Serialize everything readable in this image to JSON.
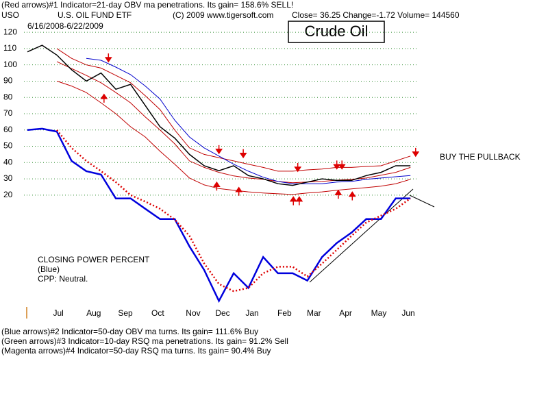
{
  "chart_data": {
    "type": "line",
    "title": "Crude Oil",
    "header": "(Red arrows)#1 Indicator=21-day OBV ma penetrations. Its gain= 158.6% SELL!",
    "symbol": "USO",
    "fund_name": "U.S. OIL FUND ETF",
    "copyright": "(C) 2009 www.tigersoft.com",
    "quote": "Close=  36.25  Change=-1.72 Volume= 144560",
    "date_range": "6/16/2008-6/22/2009",
    "annotation": "BUY THE PULLBACK",
    "cpp_lines": [
      "CLOSING POWER PERCENT",
      "(Blue)",
      "CPP: Neutral."
    ],
    "footer_lines": [
      "(Blue arrows)#2 Indicator=50-day OBV ma turns. Its gain= 111.6% Buy",
      "(Green arrows)#3 Indicator=10-day RSQ ma penetrations. Its gain= 91.2% Sell",
      "(Magenta arrows)#4 Indicator=50-day RSQ ma turns. Its gain= 90.4% Buy"
    ],
    "x": [
      0,
      2,
      4,
      6,
      8,
      10,
      12,
      14,
      16,
      18,
      20,
      22,
      24,
      26,
      28,
      30,
      32,
      34,
      36,
      38,
      40,
      42,
      44,
      46,
      48,
      50,
      52
    ],
    "xlim": [
      0,
      53
    ],
    "xticks": [
      {
        "value": 4.2,
        "label": "Jul"
      },
      {
        "value": 9.0,
        "label": "Aug"
      },
      {
        "value": 13.3,
        "label": "Sep"
      },
      {
        "value": 17.7,
        "label": "Oct"
      },
      {
        "value": 22.5,
        "label": "Nov"
      },
      {
        "value": 26.5,
        "label": "Dec"
      },
      {
        "value": 30.5,
        "label": "Jan"
      },
      {
        "value": 34.9,
        "label": "Feb"
      },
      {
        "value": 38.9,
        "label": "Mar"
      },
      {
        "value": 43.2,
        "label": "Apr"
      },
      {
        "value": 47.7,
        "label": "May"
      },
      {
        "value": 51.7,
        "label": "Jun"
      }
    ],
    "ylim": [
      -60,
      123
    ],
    "yticks": [
      20,
      30,
      40,
      50,
      60,
      70,
      80,
      90,
      100,
      110,
      120
    ],
    "grid": true,
    "grid_color": "#2e8b2e",
    "series": [
      {
        "color": "#c00000",
        "width": 1,
        "values": [
          null,
          null,
          110,
          104,
          100,
          98,
          93.5,
          89,
          81,
          72.5,
          60,
          49,
          45,
          43,
          41,
          39,
          37,
          34.7,
          34.7,
          35.5,
          36,
          37,
          37,
          37.6,
          38,
          41,
          44
        ]
      },
      {
        "color": "#c00000",
        "width": 1,
        "values": [
          null,
          null,
          102,
          97.7,
          93.5,
          89,
          83,
          76.7,
          68,
          60,
          51.5,
          41,
          37,
          34,
          31.8,
          30.5,
          29.7,
          28.4,
          27.6,
          28,
          28.4,
          29.2,
          29.7,
          30.5,
          32.2,
          34,
          37
        ]
      },
      {
        "color": "#c00000",
        "width": 1,
        "values": [
          null,
          null,
          90,
          87,
          83,
          76.7,
          70,
          62,
          55.7,
          47,
          39,
          30.5,
          26.3,
          24,
          23,
          22,
          21.3,
          20.8,
          20.4,
          21.3,
          22,
          23,
          23.8,
          24.6,
          25.5,
          27,
          29.7
        ]
      },
      {
        "color": "#0000cc",
        "width": 1,
        "values": [
          null,
          null,
          null,
          null,
          104,
          102.8,
          98.6,
          94,
          87,
          79,
          66,
          55.7,
          49,
          44,
          39,
          34.7,
          31,
          28.4,
          27,
          27,
          27,
          28,
          28.4,
          29.7,
          30.5,
          31.3,
          32
        ]
      },
      {
        "color": "#000000",
        "width": 1.5,
        "values": [
          108,
          112,
          106,
          97,
          90,
          95,
          85,
          88,
          75,
          62,
          55,
          45,
          38,
          35,
          38,
          32,
          30,
          27,
          26,
          28,
          30,
          29,
          29,
          32,
          34,
          38,
          38
        ]
      },
      {
        "color": "#0000dd",
        "width": 2.5,
        "values": [
          60,
          60.8,
          59,
          41,
          34.7,
          32.6,
          17.9,
          18,
          11.6,
          5.3,
          5.3,
          -11.5,
          -26,
          -45,
          -28,
          -37,
          -18,
          -28,
          -28,
          -32.5,
          -18,
          -9.4,
          -3,
          5.3,
          5.3,
          18,
          18
        ]
      },
      {
        "color": "#dd0000",
        "width": 2.5,
        "dotted": true,
        "values": [
          null,
          null,
          60,
          49,
          41,
          34.7,
          28,
          20,
          16,
          11.6,
          5,
          -5,
          -22,
          -34.6,
          -39,
          -37,
          -28,
          -24,
          -24,
          -30,
          -22,
          -13.6,
          -5,
          3.2,
          7.4,
          11.6,
          18
        ]
      }
    ],
    "sell_arrows": {
      "x": [
        11,
        26,
        29.3,
        36.7,
        42,
        42.7,
        52.7
      ],
      "y": [
        102.8,
        46.5,
        44,
        35.5,
        37,
        37,
        44.8
      ]
    },
    "buy_arrows": {
      "x": [
        10.4,
        25.7,
        28.7,
        36.1,
        36.9,
        42.2,
        44.1
      ],
      "y": [
        81,
        27,
        23.8,
        18,
        18,
        22,
        21
      ]
    },
    "arrow_color": "#dd0000"
  }
}
